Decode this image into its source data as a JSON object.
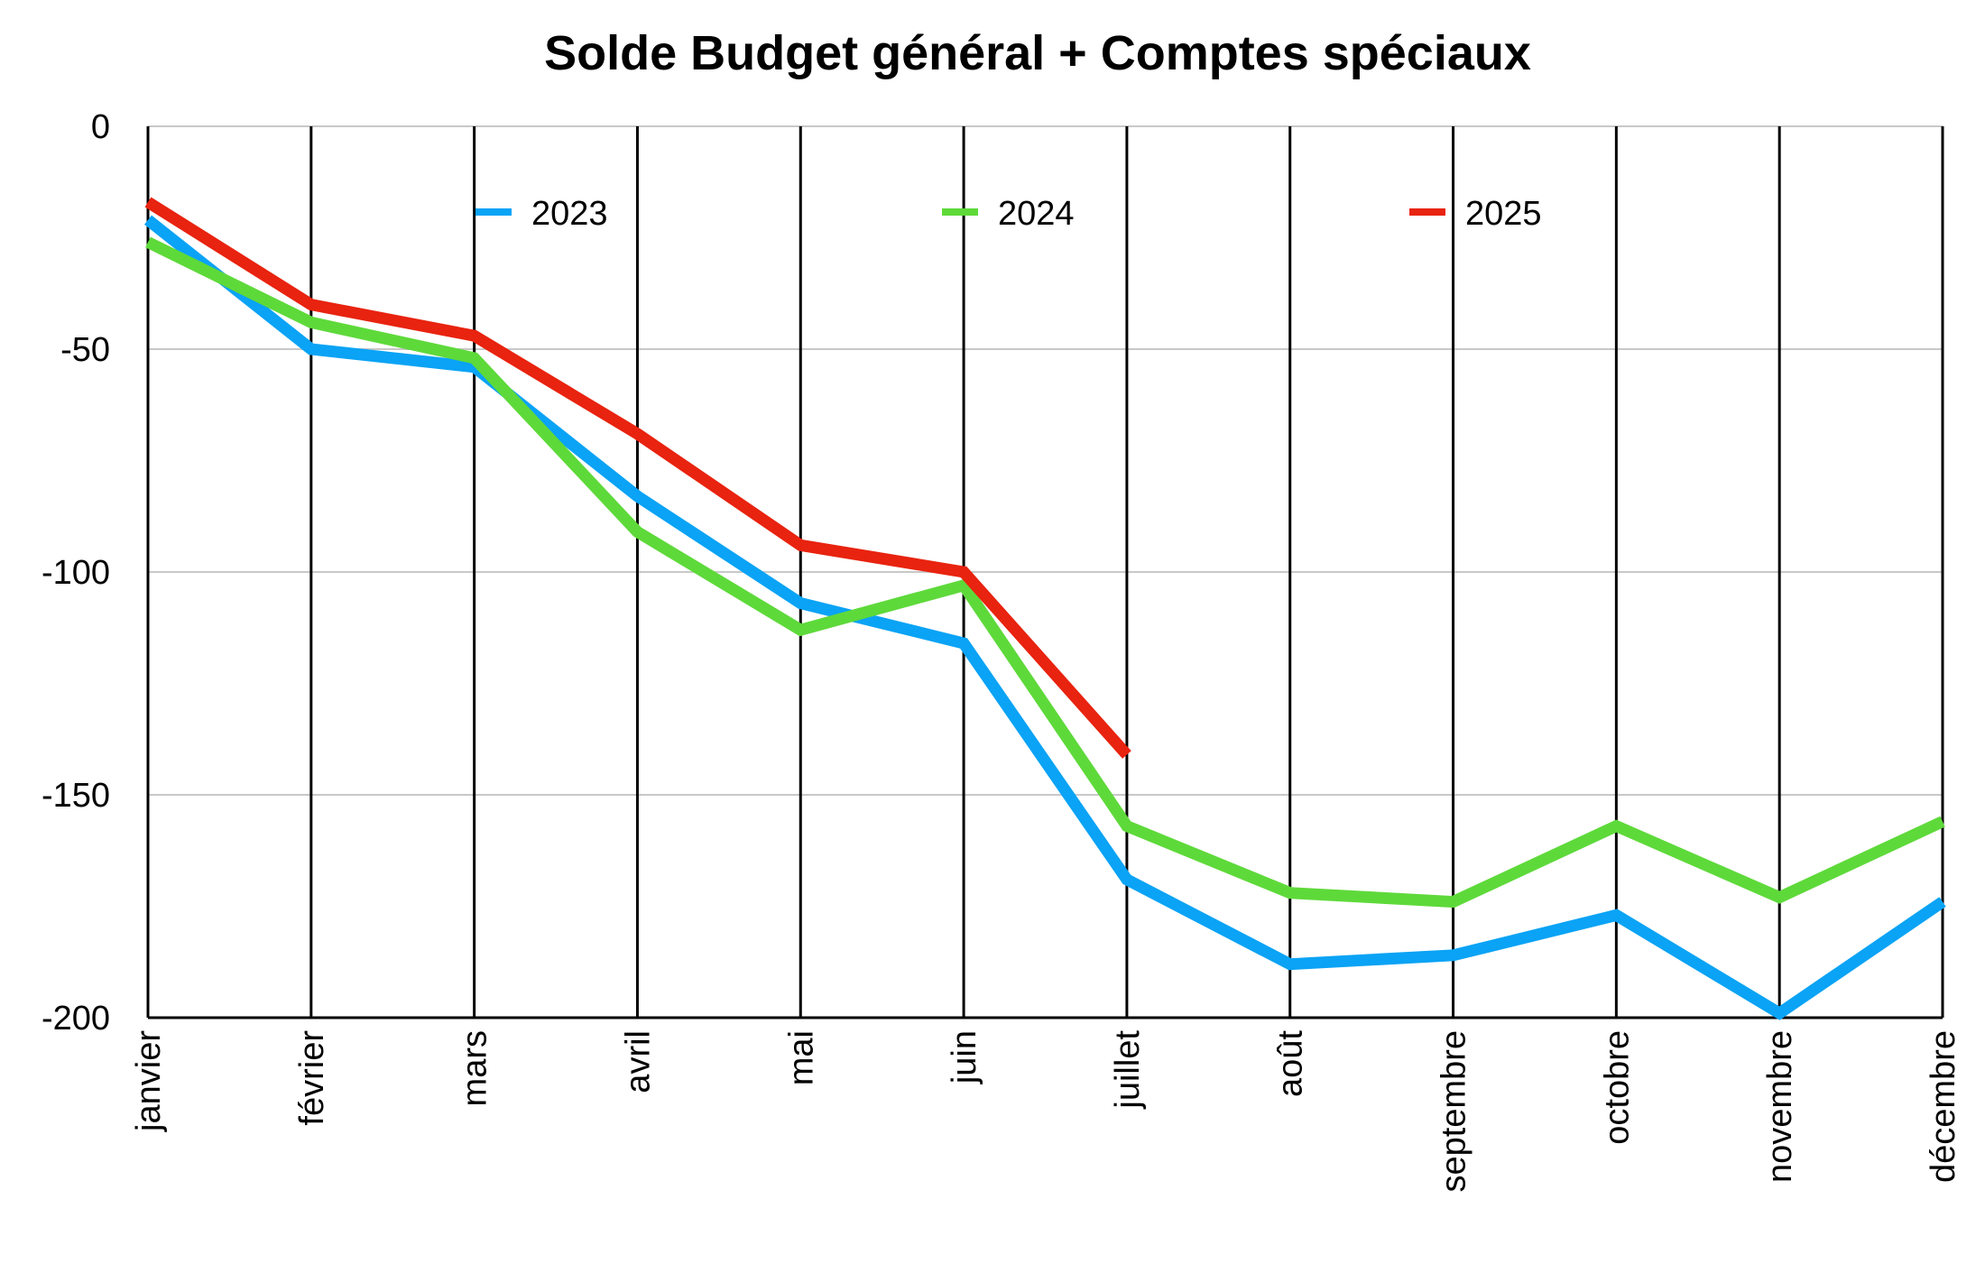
{
  "chart_data": {
    "type": "line",
    "title": "Solde Budget général + Comptes spéciaux",
    "xlabel": "",
    "ylabel": "",
    "categories": [
      "janvier",
      "février",
      "mars",
      "avril",
      "mai",
      "juin",
      "juillet",
      "août",
      "septembre",
      "octobre",
      "novembre",
      "décembre"
    ],
    "ylim": [
      -200,
      0
    ],
    "yticks": [
      "0",
      "-50",
      "-100",
      "-150",
      "-200"
    ],
    "grid": true,
    "legend_position": "top",
    "series": [
      {
        "name": "2023",
        "color": "#0aa3f5",
        "values": [
          -21,
          -50,
          -54,
          -83,
          -107,
          -116,
          -169,
          -188,
          -186,
          -177,
          -199,
          -174
        ]
      },
      {
        "name": "2024",
        "color": "#5ed93a",
        "values": [
          -26,
          -44,
          -52,
          -91,
          -113,
          -103,
          -157,
          -172,
          -174,
          -157,
          -173,
          -156
        ]
      },
      {
        "name": "2025",
        "color": "#e8230f",
        "values": [
          -17,
          -40,
          -47,
          -69,
          -94,
          -100,
          -141,
          null,
          null,
          null,
          null,
          null
        ]
      }
    ]
  }
}
